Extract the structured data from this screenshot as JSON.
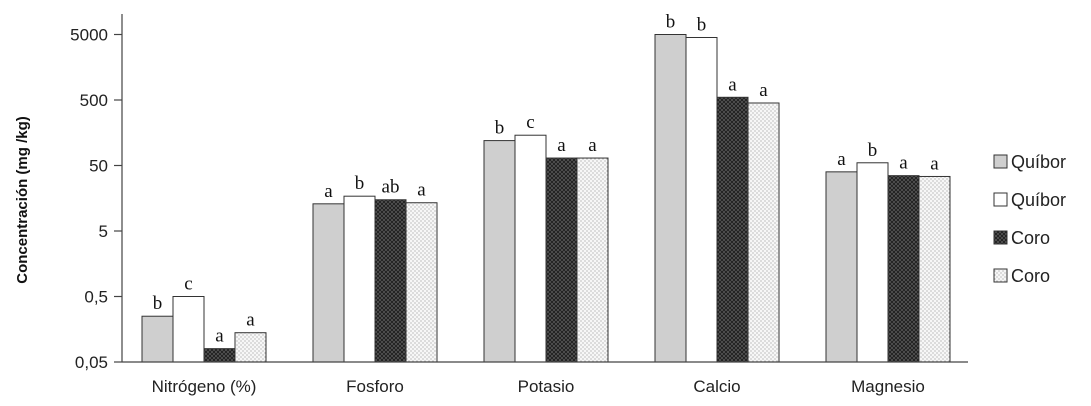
{
  "chart_data": {
    "type": "bar",
    "title": "",
    "xlabel": "",
    "ylabel": "Concentración (mg /kg)",
    "yscale": "log",
    "ylim": [
      0.05,
      10000
    ],
    "yticks": [
      0.05,
      0.5,
      5,
      50,
      500,
      5000
    ],
    "ytick_labels": [
      "0,05",
      "0,5",
      "5",
      "50",
      "500",
      "5000"
    ],
    "categories": [
      "Nitrógeno (%)",
      "Fosforo",
      "Potasio",
      "Calcio",
      "Magnesio"
    ],
    "series": [
      {
        "name": "Quíbor",
        "fill": "#cfcfcf",
        "pattern": "solid-gray",
        "values": [
          0.25,
          13,
          120,
          5000,
          40
        ],
        "letters": [
          "b",
          "a",
          "b",
          "b",
          "a"
        ]
      },
      {
        "name": "Quíbor",
        "fill": "#ffffff",
        "pattern": "white",
        "values": [
          0.5,
          17,
          145,
          4500,
          55
        ],
        "letters": [
          "c",
          "b",
          "c",
          "b",
          "b"
        ]
      },
      {
        "name": "Coro",
        "fill": "#1a1a1a",
        "pattern": "dark-crosshatch",
        "values": [
          0.08,
          15,
          65,
          550,
          35
        ],
        "letters": [
          "a",
          "ab",
          "a",
          "a",
          "a"
        ]
      },
      {
        "name": "Coro",
        "fill": "#f4f4f4",
        "pattern": "light-dotted",
        "values": [
          0.14,
          13.5,
          65,
          450,
          34
        ],
        "letters": [
          "a",
          "a",
          "a",
          "a",
          "a"
        ]
      }
    ],
    "legend_position": "right",
    "grid": false
  }
}
